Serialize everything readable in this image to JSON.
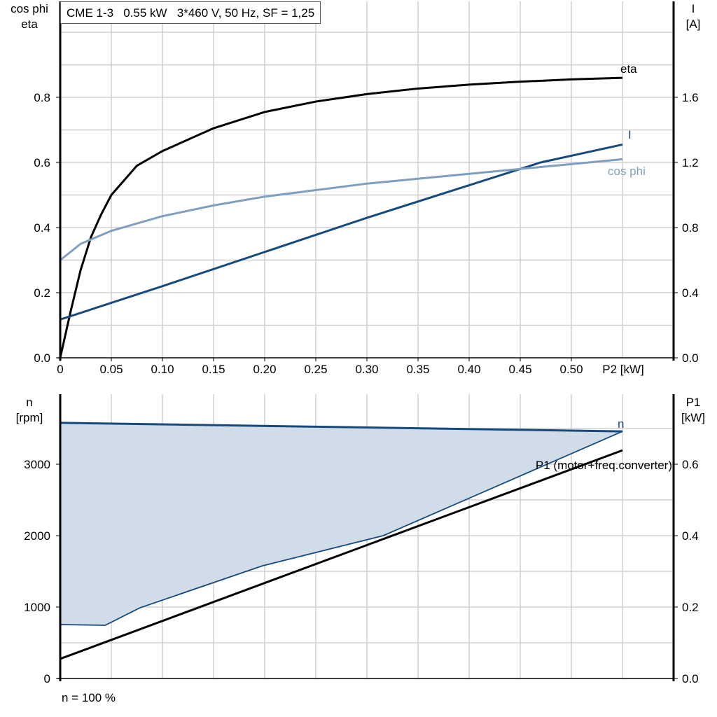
{
  "chart_data": [
    {
      "type": "line",
      "title": "CME 1-3   0.55 kW   3*460 V, 50 Hz, SF = 1,25",
      "xlabel": "P2 [kW]",
      "ylabel": "cos phi\neta",
      "ylabel_lines": [
        "cos phi",
        "eta"
      ],
      "y2label_lines": [
        "I",
        "[A]"
      ],
      "xlim": [
        0,
        0.6
      ],
      "ylim": [
        0,
        1.1
      ],
      "y2lim": [
        0,
        2.2
      ],
      "x_ticks": [
        "0",
        "0.05",
        "0.10",
        "0.15",
        "0.20",
        "0.25",
        "0.30",
        "0.35",
        "0.40",
        "0.45",
        "0.50"
      ],
      "y_ticks": [
        "0.0",
        "0.2",
        "0.4",
        "0.6",
        "0.8"
      ],
      "y2_ticks": [
        "0.0",
        "0.4",
        "0.8",
        "1.2",
        "1.6"
      ],
      "grid": true,
      "series": [
        {
          "name": "eta",
          "axis": "left",
          "color": "#000000",
          "x": [
            0,
            0.01,
            0.02,
            0.03,
            0.04,
            0.05,
            0.075,
            0.1,
            0.15,
            0.2,
            0.25,
            0.3,
            0.35,
            0.4,
            0.45,
            0.5,
            0.55
          ],
          "y": [
            0,
            0.14,
            0.27,
            0.37,
            0.44,
            0.5,
            0.59,
            0.635,
            0.705,
            0.755,
            0.787,
            0.81,
            0.827,
            0.839,
            0.848,
            0.855,
            0.86
          ]
        },
        {
          "name": "I",
          "axis": "right",
          "color": "#174a7c",
          "x": [
            0,
            0.1,
            0.2,
            0.3,
            0.4,
            0.47,
            0.55
          ],
          "y": [
            0.235,
            0.44,
            0.65,
            0.86,
            1.06,
            1.2,
            1.31
          ]
        },
        {
          "name": "cos phi",
          "axis": "left",
          "color": "#7f9fbf",
          "x": [
            0,
            0.02,
            0.05,
            0.1,
            0.15,
            0.2,
            0.3,
            0.4,
            0.5,
            0.55
          ],
          "y": [
            0.3,
            0.35,
            0.39,
            0.435,
            0.468,
            0.495,
            0.535,
            0.565,
            0.595,
            0.61
          ]
        }
      ]
    },
    {
      "type": "area",
      "xlim": [
        0,
        0.6
      ],
      "ylabel_lines": [
        "n",
        "[rpm]"
      ],
      "y2label_lines": [
        "P1",
        "[kW]"
      ],
      "ylim": [
        0,
        3980
      ],
      "y2lim": [
        0,
        0.796
      ],
      "y_ticks": [
        "0",
        "1000",
        "2000",
        "3000"
      ],
      "y2_ticks": [
        "0.0",
        "0.2",
        "0.4",
        "0.6"
      ],
      "grid": true,
      "footnote": "n = 100 %",
      "series": [
        {
          "name": "n",
          "axis": "left",
          "color": "#174a7c",
          "role": "max speed",
          "x": [
            0,
            0.55
          ],
          "y": [
            3580,
            3460
          ]
        },
        {
          "axis": "left",
          "color": "#174a7c",
          "role": "min speed",
          "x": [
            0,
            0.044,
            0.078,
            0.198,
            0.316,
            0.55
          ],
          "y": [
            755,
            745,
            990,
            1578,
            2000,
            3460
          ]
        },
        {
          "name": "P1 (motor+freq.converter)",
          "axis": "right",
          "color": "#000000",
          "x": [
            0,
            0.55
          ],
          "y": [
            0.055,
            0.639
          ]
        }
      ],
      "fill_color": "#d0dce8"
    }
  ]
}
